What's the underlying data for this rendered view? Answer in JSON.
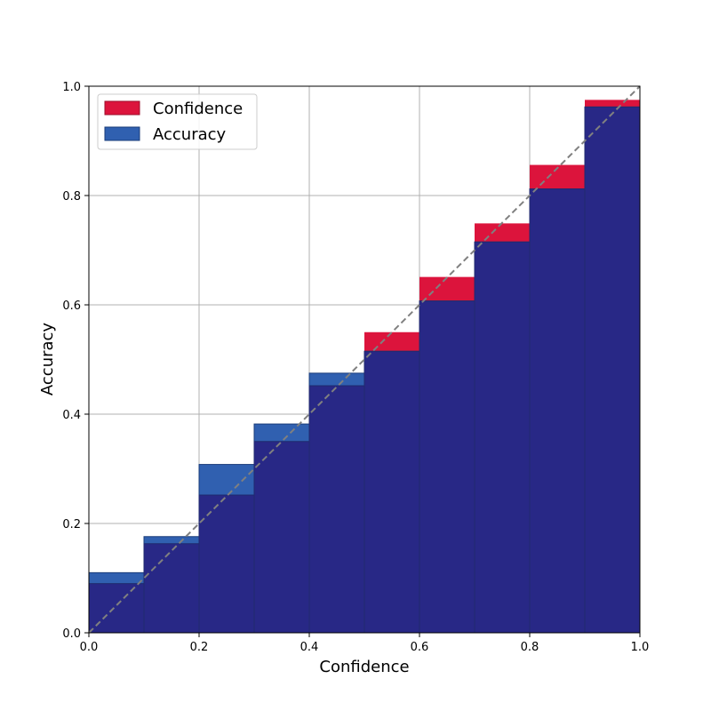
{
  "chart_data": {
    "type": "bar",
    "xlabel": "Confidence",
    "ylabel": "Accuracy",
    "xlim": [
      0,
      1
    ],
    "ylim": [
      0,
      1
    ],
    "xticks": [
      "0.0",
      "0.2",
      "0.4",
      "0.6",
      "0.8",
      "1.0"
    ],
    "yticks": [
      "0.0",
      "0.2",
      "0.4",
      "0.6",
      "0.8",
      "1.0"
    ],
    "grid": true,
    "legend_position": "top-left",
    "bins": [
      0.0,
      0.1,
      0.2,
      0.3,
      0.4,
      0.5,
      0.6,
      0.7,
      0.8,
      0.9
    ],
    "bin_width": 0.1,
    "series": [
      {
        "name": "Confidence",
        "color": "#dc143c",
        "values": [
          0.09,
          0.163,
          0.252,
          0.35,
          0.452,
          0.55,
          0.651,
          0.749,
          0.856,
          0.975
        ]
      },
      {
        "name": "Accuracy",
        "color": "#3060b0",
        "values": [
          0.11,
          0.176,
          0.308,
          0.382,
          0.475,
          0.515,
          0.607,
          0.715,
          0.812,
          0.962
        ]
      }
    ],
    "overlap_color": "#282886",
    "diagonal": {
      "from": [
        0,
        0
      ],
      "to": [
        1,
        1
      ],
      "color": "#808080",
      "style": "dashed"
    }
  }
}
